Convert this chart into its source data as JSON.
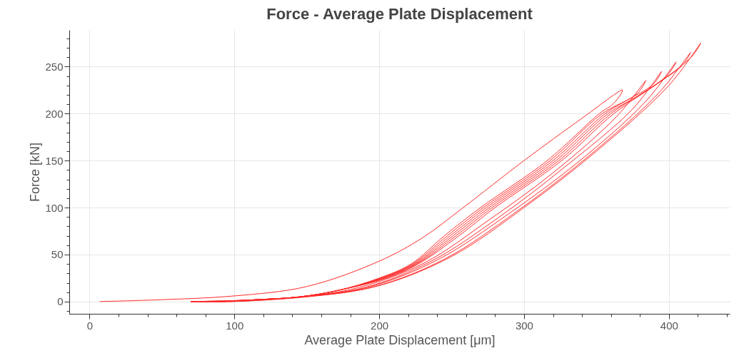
{
  "chart_data": {
    "type": "line",
    "title": "Force - Average Plate Displacement",
    "xlabel": "Average Plate Displacement [μm]",
    "ylabel": "Force [kN]",
    "x": [
      7,
      50,
      100,
      150,
      200,
      230,
      258,
      300,
      340,
      368,
      362,
      352,
      316,
      270,
      245,
      222,
      200,
      172,
      145,
      115,
      90,
      70,
      97,
      141,
      186,
      231,
      275,
      320,
      364,
      384,
      378,
      354,
      318,
      272,
      247,
      223,
      201,
      172,
      145,
      115,
      90,
      70,
      98,
      144,
      190,
      236,
      282,
      328,
      375,
      395,
      389,
      372,
      356,
      320,
      274,
      249,
      224,
      202,
      172,
      145,
      115,
      90,
      70,
      99,
      146,
      194,
      241,
      289,
      337,
      384,
      405,
      399,
      380,
      358,
      322,
      276,
      251,
      225,
      203,
      172,
      145,
      115,
      90,
      70,
      99,
      148,
      197,
      246,
      295,
      344,
      393,
      415,
      409,
      388,
      360,
      324,
      278,
      253,
      226,
      204,
      172,
      145,
      115,
      90,
      70,
      100,
      150,
      200,
      250,
      300,
      350,
      400,
      422,
      416,
      395,
      362,
      326,
      280,
      255,
      227,
      205,
      172,
      145,
      115,
      90,
      70
    ],
    "series": [
      {
        "color": "#ff2a2a",
        "values": [
          0,
          2,
          6,
          16,
          43,
          68,
          100,
          150,
          195,
          225,
          211,
          200,
          150,
          100,
          70,
          40,
          25,
          12,
          5,
          2,
          0,
          0,
          0,
          4,
          15,
          41,
          86,
          137,
          197,
          235,
          221,
          200,
          150,
          100,
          70,
          40,
          25,
          12,
          5,
          2,
          0,
          0,
          0,
          5,
          15,
          43,
          89,
          143,
          205,
          245,
          231,
          215,
          200,
          150,
          100,
          70,
          40,
          25,
          12,
          5,
          2,
          0,
          0,
          1,
          5,
          16,
          45,
          93,
          148,
          213,
          255,
          241,
          220,
          200,
          150,
          100,
          70,
          40,
          25,
          12,
          5,
          2,
          0,
          0,
          1,
          5,
          16,
          46,
          96,
          154,
          222,
          265,
          251,
          228,
          200,
          150,
          100,
          70,
          40,
          25,
          12,
          5,
          2,
          0,
          0,
          1,
          5,
          17,
          48,
          100,
          160,
          230,
          275,
          261,
          235,
          200,
          150,
          100,
          70,
          40,
          25,
          12,
          5,
          2,
          0,
          0
        ]
      }
    ],
    "xlim": [
      -14,
      442
    ],
    "xticks": [
      0,
      {
        "value": 20,
        "label": null
      },
      {
        "value": 40,
        "label": null
      },
      {
        "value": 60,
        "label": null
      },
      {
        "value": 80,
        "label": null
      },
      100,
      {
        "value": 120,
        "label": null
      },
      {
        "value": 140,
        "label": null
      },
      {
        "value": 160,
        "label": null
      },
      {
        "value": 180,
        "label": null
      },
      200,
      {
        "value": 220,
        "label": null
      },
      {
        "value": 240,
        "label": null
      },
      {
        "value": 260,
        "label": null
      },
      {
        "value": 280,
        "label": null
      },
      300,
      {
        "value": 320,
        "label": null
      },
      {
        "value": 340,
        "label": null
      },
      {
        "value": 360,
        "label": null
      },
      {
        "value": 380,
        "label": null
      },
      400,
      {
        "value": 420,
        "label": null
      },
      {
        "value": 440,
        "label": null
      }
    ],
    "ylim": [
      -13,
      289
    ],
    "yticks": [
      {
        "value": -10,
        "label": null
      },
      0,
      {
        "value": 10,
        "label": null
      },
      {
        "value": 20,
        "label": null
      },
      {
        "value": 30,
        "label": null
      },
      {
        "value": 40,
        "label": null
      },
      50,
      {
        "value": 60,
        "label": null
      },
      {
        "value": 70,
        "label": null
      },
      {
        "value": 80,
        "label": null
      },
      {
        "value": 90,
        "label": null
      },
      100,
      {
        "value": 110,
        "label": null
      },
      {
        "value": 120,
        "label": null
      },
      {
        "value": 130,
        "label": null
      },
      {
        "value": 140,
        "label": null
      },
      150,
      {
        "value": 160,
        "label": null
      },
      {
        "value": 170,
        "label": null
      },
      {
        "value": 180,
        "label": null
      },
      {
        "value": 190,
        "label": null
      },
      200,
      {
        "value": 210,
        "label": null
      },
      {
        "value": 220,
        "label": null
      },
      {
        "value": 230,
        "label": null
      },
      {
        "value": 240,
        "label": null
      },
      250,
      {
        "value": 260,
        "label": null
      },
      {
        "value": 270,
        "label": null
      },
      {
        "value": 280,
        "label": null
      }
    ],
    "grid": true,
    "line_style": "solid"
  }
}
